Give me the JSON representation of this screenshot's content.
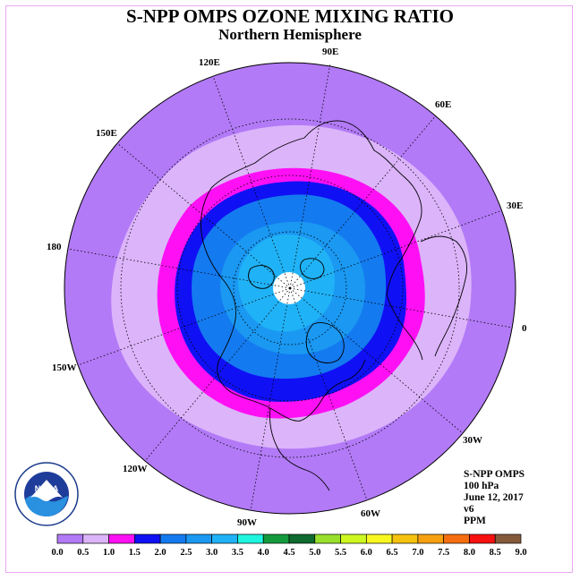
{
  "title": "S-NPP OMPS OZONE MIXING RATIO",
  "subtitle": "Northern Hemisphere",
  "longitude_labels": {
    "e90": "90E",
    "e60": "60E",
    "e30": "30E",
    "zero": "0",
    "w30": "30W",
    "w60": "60W",
    "w90": "90W",
    "w120": "120W",
    "w150": "150W",
    "d180": "180",
    "e150": "150E",
    "e120": "120E"
  },
  "info": {
    "instrument": "S-NPP OMPS",
    "level": "100 hPa",
    "date": "June 12, 2017",
    "version": "v6",
    "units": "PPM"
  },
  "logo": {
    "name": "NOAA",
    "ring_text": "NATIONAL OCEANIC AND ATMOSPHERIC ADMINISTRATION U.S. DEPARTMENT OF COMMERCE"
  },
  "colorbar": {
    "ticks": [
      "0.0",
      "0.5",
      "1.0",
      "1.5",
      "2.0",
      "2.5",
      "3.0",
      "3.5",
      "4.0",
      "4.5",
      "5.0",
      "5.5",
      "6.0",
      "6.5",
      "7.0",
      "7.5",
      "8.0",
      "8.5",
      "9.0"
    ],
    "colors": [
      "#b27af6",
      "#dcb4fa",
      "#ff10f4",
      "#1010f4",
      "#147af0",
      "#1a98f2",
      "#20b2f6",
      "#1ef6e0",
      "#149a3c",
      "#0e6a2e",
      "#98e02c",
      "#ccf820",
      "#f8f820",
      "#f6c210",
      "#f6a010",
      "#f66e10",
      "#f61010",
      "#845a3a"
    ]
  },
  "map_colors": {
    "band_0_0p5": "#b27af6",
    "band_0p5_1": "#dcb4fa",
    "band_1_1p5": "#ff10f4",
    "band_1p5_2": "#1010f4",
    "band_2_2p5": "#147af0",
    "band_2p5_3": "#1a98f2",
    "band_3_3p5": "#20b2f6",
    "no_data_pole": "#ffffff"
  }
}
